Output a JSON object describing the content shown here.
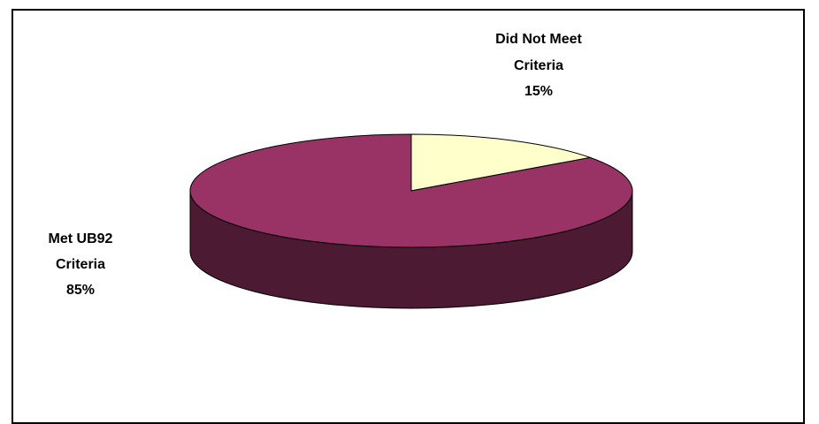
{
  "chart_data": {
    "type": "pie",
    "style": "3d",
    "categories": [
      "Met UB92 Criteria",
      "Did Not Meet Criteria"
    ],
    "values": [
      85,
      15
    ],
    "unit": "%",
    "colors": [
      "#993366",
      "#ffffcc"
    ],
    "side_colors": [
      "#4d1a33",
      "#80805f"
    ],
    "labels": [
      {
        "lines": [
          "Met UB92",
          "Criteria",
          "85%"
        ],
        "series_index": 0
      },
      {
        "lines": [
          "Did Not Meet",
          "Criteria",
          "15%"
        ],
        "series_index": 1
      }
    ],
    "legend": "none"
  }
}
